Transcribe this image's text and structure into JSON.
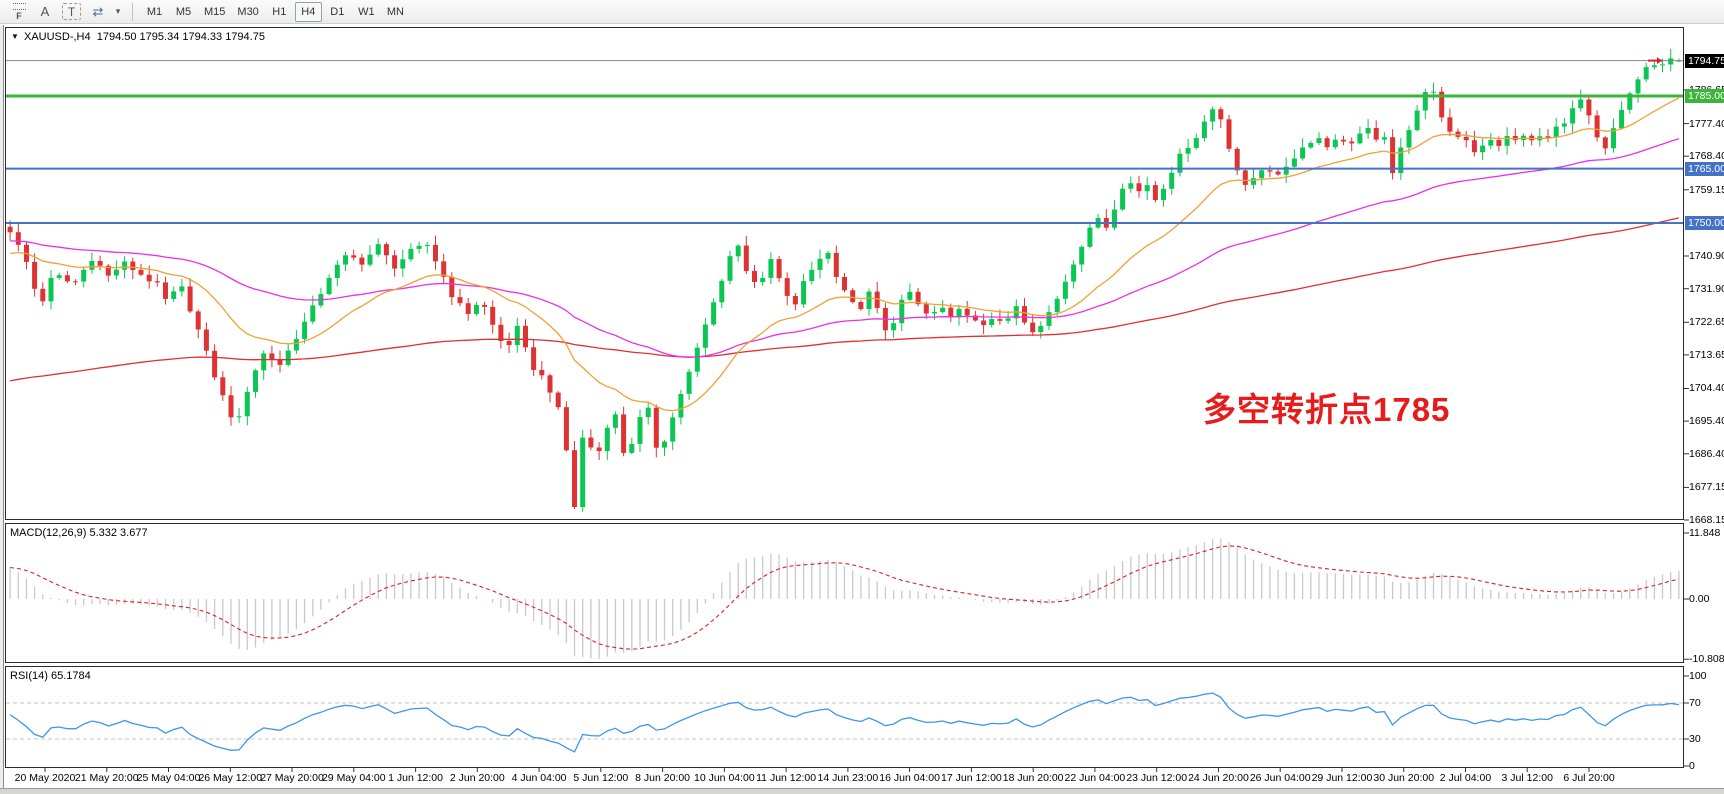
{
  "toolbar": {
    "tools": [
      {
        "name": "fibonacci-tool-icon",
        "glyph": "F"
      },
      {
        "name": "text-tool-icon",
        "glyph": "A"
      },
      {
        "name": "label-tool-icon",
        "glyph": "T"
      },
      {
        "name": "cycle-symbols-icon",
        "glyph": "⇄"
      },
      {
        "name": "dropdown-caret-icon",
        "glyph": "▾"
      }
    ],
    "timeframes": [
      "M1",
      "M5",
      "M15",
      "M30",
      "H1",
      "H4",
      "D1",
      "W1",
      "MN"
    ],
    "active_timeframe": "H4"
  },
  "chart": {
    "collapse_caret": "▼",
    "title": "XAUUSD-,H4  1794.50 1795.34 1794.33 1794.75",
    "current_price": "1794.75",
    "annotation": {
      "text": "多空转折点1785",
      "color": "#e81b1b"
    },
    "levels": [
      {
        "price": 1785.0,
        "label": "1785.00",
        "color": "#3db53d",
        "width": 3
      },
      {
        "price": 1765.0,
        "label": "1765.00",
        "color": "#4472c8",
        "width": 2
      },
      {
        "price": 1750.0,
        "label": "1750.00",
        "color": "#4472c8",
        "width": 2
      }
    ],
    "y_axis_labels": [
      {
        "price": 1786.65,
        "label": "1786.65"
      },
      {
        "price": 1777.4,
        "label": "1777.40"
      },
      {
        "price": 1768.4,
        "label": "1768.40"
      },
      {
        "price": 1759.15,
        "label": "1759.15"
      },
      {
        "price": 1740.9,
        "label": "1740.90"
      },
      {
        "price": 1731.9,
        "label": "1731.90"
      },
      {
        "price": 1722.65,
        "label": "1722.65"
      },
      {
        "price": 1713.65,
        "label": "1713.65"
      },
      {
        "price": 1704.4,
        "label": "1704.40"
      },
      {
        "price": 1695.4,
        "label": "1695.40"
      },
      {
        "price": 1686.4,
        "label": "1686.40"
      },
      {
        "price": 1677.15,
        "label": "1677.15"
      },
      {
        "price": 1668.15,
        "label": "1668.15"
      }
    ]
  },
  "macd": {
    "label": "MACD(12,26,9) 5.332 3.677",
    "params": [
      12,
      26,
      9
    ],
    "values_shown": [
      "5.332",
      "3.677"
    ],
    "axis": [
      {
        "v": 11.848,
        "label": "11.848"
      },
      {
        "v": 0,
        "label": "0.00"
      },
      {
        "v": -10.808,
        "label": "-10.808"
      }
    ]
  },
  "rsi": {
    "label": "RSI(14) 65.1784",
    "period": 14,
    "value_shown": "65.1784",
    "axis": [
      {
        "v": 100,
        "label": "100"
      },
      {
        "v": 70,
        "label": "70"
      },
      {
        "v": 30,
        "label": "30"
      },
      {
        "v": 0,
        "label": "0"
      }
    ],
    "guides": [
      70,
      30
    ]
  },
  "time_axis": [
    "20 May 2020",
    "21 May 20:00",
    "25 May 04:00",
    "26 May 12:00",
    "27 May 20:00",
    "29 May 04:00",
    "1 Jun 12:00",
    "2 Jun 20:00",
    "4 Jun 04:00",
    "5 Jun 12:00",
    "8 Jun 20:00",
    "10 Jun 04:00",
    "11 Jun 12:00",
    "14 Jun 23:00",
    "16 Jun 04:00",
    "17 Jun 12:00",
    "18 Jun 20:00",
    "22 Jun 04:00",
    "23 Jun 12:00",
    "24 Jun 20:00",
    "26 Jun 04:00",
    "29 Jun 12:00",
    "30 Jun 20:00",
    "2 Jul 04:00",
    "3 Jul 12:00",
    "6 Jul 20:00"
  ],
  "chart_data": {
    "type": "candlestick",
    "symbol": "XAUUSD-",
    "timeframe": "H4",
    "bars": 205,
    "ohlc_current": {
      "open": 1794.5,
      "high": 1795.34,
      "low": 1794.33,
      "close": 1794.75
    },
    "y_range": [
      1662,
      1804
    ],
    "colors": {
      "up": "#0cc653",
      "down": "#dd3333",
      "ma_fast": "#efa134",
      "ma_mid": "#ea30ea",
      "ma_slow": "#e03030",
      "macd_hist": "#c9c9c9",
      "macd_signal": "#dd2222",
      "rsi": "#3e96e8",
      "price_line": "#868686",
      "guide": "#c3c3c3"
    },
    "moving_averages": [
      {
        "name": "fast",
        "period": 20,
        "color_key": "ma_fast",
        "start": 1741
      },
      {
        "name": "mid",
        "period": 60,
        "color_key": "ma_mid",
        "start": 1745
      },
      {
        "name": "slow",
        "period": 170,
        "color_key": "ma_slow",
        "start": 1706
      }
    ],
    "price_path": [
      [
        0.0,
        1748
      ],
      [
        0.01,
        1739
      ],
      [
        0.018,
        1727
      ],
      [
        0.026,
        1736
      ],
      [
        0.038,
        1733
      ],
      [
        0.05,
        1741
      ],
      [
        0.058,
        1735
      ],
      [
        0.068,
        1739
      ],
      [
        0.078,
        1736
      ],
      [
        0.088,
        1733
      ],
      [
        0.094,
        1728
      ],
      [
        0.102,
        1733
      ],
      [
        0.11,
        1724
      ],
      [
        0.12,
        1711
      ],
      [
        0.13,
        1699
      ],
      [
        0.136,
        1694
      ],
      [
        0.144,
        1707
      ],
      [
        0.152,
        1714
      ],
      [
        0.162,
        1711
      ],
      [
        0.172,
        1719
      ],
      [
        0.182,
        1727
      ],
      [
        0.192,
        1736
      ],
      [
        0.202,
        1741
      ],
      [
        0.212,
        1739
      ],
      [
        0.22,
        1744
      ],
      [
        0.23,
        1738
      ],
      [
        0.24,
        1742
      ],
      [
        0.25,
        1744
      ],
      [
        0.258,
        1737
      ],
      [
        0.266,
        1729
      ],
      [
        0.274,
        1725
      ],
      [
        0.282,
        1729
      ],
      [
        0.29,
        1721
      ],
      [
        0.297,
        1715
      ],
      [
        0.304,
        1721
      ],
      [
        0.312,
        1711
      ],
      [
        0.32,
        1707
      ],
      [
        0.327,
        1701
      ],
      [
        0.332,
        1692
      ],
      [
        0.338,
        1671
      ],
      [
        0.344,
        1694
      ],
      [
        0.351,
        1684
      ],
      [
        0.357,
        1694
      ],
      [
        0.363,
        1697
      ],
      [
        0.369,
        1684
      ],
      [
        0.376,
        1695
      ],
      [
        0.382,
        1699
      ],
      [
        0.388,
        1687
      ],
      [
        0.394,
        1692
      ],
      [
        0.401,
        1702
      ],
      [
        0.408,
        1710
      ],
      [
        0.416,
        1721
      ],
      [
        0.424,
        1731
      ],
      [
        0.43,
        1740
      ],
      [
        0.436,
        1744
      ],
      [
        0.443,
        1735
      ],
      [
        0.45,
        1733
      ],
      [
        0.456,
        1740
      ],
      [
        0.463,
        1732
      ],
      [
        0.469,
        1726
      ],
      [
        0.476,
        1734
      ],
      [
        0.483,
        1739
      ],
      [
        0.489,
        1743
      ],
      [
        0.495,
        1736
      ],
      [
        0.502,
        1730
      ],
      [
        0.508,
        1725
      ],
      [
        0.514,
        1731
      ],
      [
        0.52,
        1726
      ],
      [
        0.526,
        1718
      ],
      [
        0.532,
        1727
      ],
      [
        0.538,
        1731
      ],
      [
        0.545,
        1727
      ],
      [
        0.551,
        1724
      ],
      [
        0.558,
        1727
      ],
      [
        0.564,
        1723
      ],
      [
        0.571,
        1727
      ],
      [
        0.577,
        1723
      ],
      [
        0.584,
        1721
      ],
      [
        0.59,
        1725
      ],
      [
        0.597,
        1722
      ],
      [
        0.603,
        1727
      ],
      [
        0.609,
        1721
      ],
      [
        0.615,
        1719
      ],
      [
        0.621,
        1724
      ],
      [
        0.627,
        1729
      ],
      [
        0.633,
        1735
      ],
      [
        0.639,
        1741
      ],
      [
        0.645,
        1746
      ],
      [
        0.651,
        1752
      ],
      [
        0.657,
        1749
      ],
      [
        0.663,
        1756
      ],
      [
        0.669,
        1763
      ],
      [
        0.675,
        1758
      ],
      [
        0.681,
        1761
      ],
      [
        0.687,
        1756
      ],
      [
        0.693,
        1762
      ],
      [
        0.699,
        1767
      ],
      [
        0.705,
        1771
      ],
      [
        0.711,
        1774
      ],
      [
        0.717,
        1779
      ],
      [
        0.723,
        1783
      ],
      [
        0.729,
        1773
      ],
      [
        0.735,
        1765
      ],
      [
        0.741,
        1759
      ],
      [
        0.747,
        1764
      ],
      [
        0.753,
        1766
      ],
      [
        0.759,
        1762
      ],
      [
        0.765,
        1766
      ],
      [
        0.771,
        1769
      ],
      [
        0.777,
        1772
      ],
      [
        0.783,
        1774
      ],
      [
        0.789,
        1771
      ],
      [
        0.795,
        1774
      ],
      [
        0.801,
        1771
      ],
      [
        0.807,
        1774
      ],
      [
        0.813,
        1776
      ],
      [
        0.819,
        1772
      ],
      [
        0.825,
        1775
      ],
      [
        0.829,
        1761
      ],
      [
        0.833,
        1770
      ],
      [
        0.837,
        1775
      ],
      [
        0.841,
        1779
      ],
      [
        0.846,
        1785
      ],
      [
        0.851,
        1788
      ],
      [
        0.856,
        1782
      ],
      [
        0.861,
        1776
      ],
      [
        0.866,
        1772
      ],
      [
        0.871,
        1775
      ],
      [
        0.876,
        1769
      ],
      [
        0.881,
        1771
      ],
      [
        0.886,
        1774
      ],
      [
        0.891,
        1771
      ],
      [
        0.896,
        1774
      ],
      [
        0.901,
        1772
      ],
      [
        0.906,
        1775
      ],
      [
        0.911,
        1772
      ],
      [
        0.916,
        1774
      ],
      [
        0.921,
        1773
      ],
      [
        0.926,
        1776
      ],
      [
        0.931,
        1778
      ],
      [
        0.936,
        1781
      ],
      [
        0.941,
        1784
      ],
      [
        0.946,
        1779
      ],
      [
        0.951,
        1773
      ],
      [
        0.956,
        1770
      ],
      [
        0.961,
        1776
      ],
      [
        0.966,
        1781
      ],
      [
        0.971,
        1786
      ],
      [
        0.977,
        1791
      ],
      [
        0.983,
        1794
      ],
      [
        0.989,
        1792.5
      ],
      [
        0.995,
        1795
      ],
      [
        1.0,
        1794.75
      ]
    ]
  }
}
